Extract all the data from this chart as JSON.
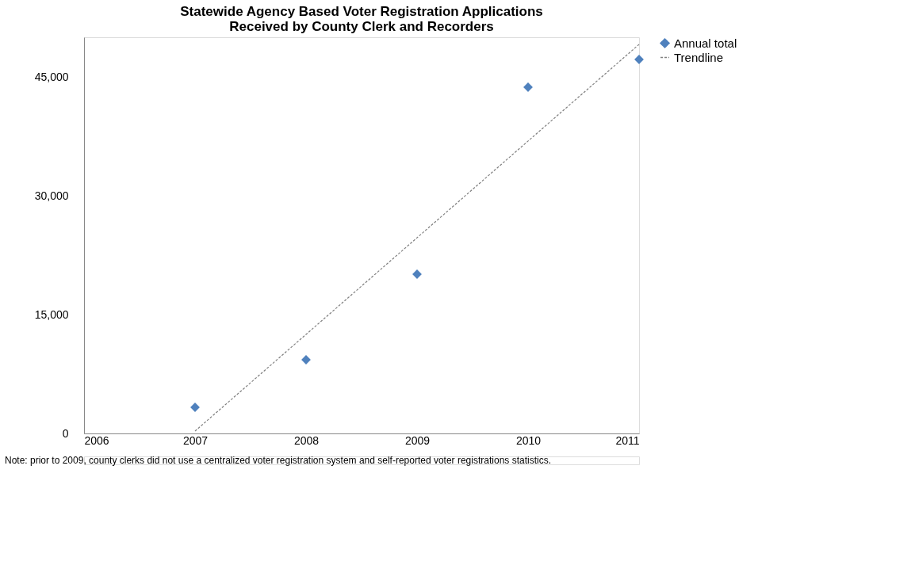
{
  "chart_data": {
    "type": "scatter",
    "title": "Statewide Agency Based Voter Registration Applications\nReceived by County Clerk and Recorders",
    "x": [
      2007,
      2008,
      2009,
      2010,
      2011
    ],
    "series": [
      {
        "name": "Annual total",
        "color": "#4f81bd",
        "marker": "diamond",
        "values": [
          3300,
          9300,
          20100,
          43700,
          47200
        ]
      },
      {
        "name": "Trendline",
        "type": "line",
        "color": "#7f7f7f",
        "line_style": "dashed",
        "x": [
          2007,
          2011
        ],
        "values": [
          300,
          49100
        ]
      }
    ],
    "xlim": [
      2006,
      2011
    ],
    "xticks": [
      2006,
      2007,
      2008,
      2009,
      2010,
      2011
    ],
    "ylim": [
      0,
      50000
    ],
    "yticks": [
      0,
      {
        "value": 15000,
        "label": "15,000"
      },
      {
        "value": 30000,
        "label": "30,000"
      },
      {
        "value": 45000,
        "label": "45,000"
      }
    ],
    "grid": false,
    "legend": "right",
    "annotations": [
      "Note: prior to 2009, county clerks did not use a centralized voter registration system and self-reported voter registrations statistics."
    ]
  }
}
